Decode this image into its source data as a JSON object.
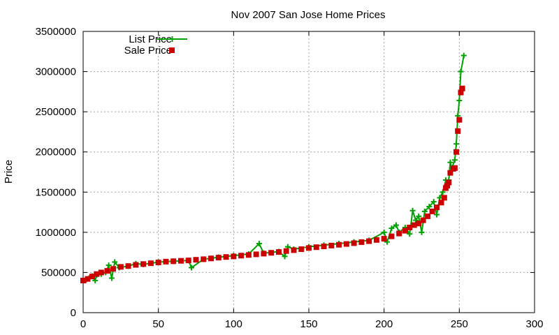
{
  "chart_data": {
    "type": "line",
    "title": "Nov 2007 San Jose Home Prices",
    "xlabel": "",
    "ylabel": "Price",
    "xlim": [
      0,
      300
    ],
    "ylim": [
      0,
      3500000
    ],
    "x_ticks": [
      "0",
      "50",
      "100",
      "150",
      "200",
      "250",
      "300"
    ],
    "y_ticks": [
      "0",
      "500000",
      "1000000",
      "1500000",
      "2000000",
      "2500000",
      "3000000",
      "3500000"
    ],
    "grid": true,
    "legend_position": "top-left",
    "colors": {
      "list": "#00a000",
      "sale": "#cc0000"
    },
    "series": [
      {
        "name": "List Price",
        "style": "lines+points",
        "marker": "plus",
        "points": [
          [
            0,
            399000
          ],
          [
            2,
            405000
          ],
          [
            4,
            430000
          ],
          [
            6,
            455000
          ],
          [
            8,
            400000
          ],
          [
            9,
            470000
          ],
          [
            12,
            480000
          ],
          [
            15,
            500000
          ],
          [
            17,
            590000
          ],
          [
            19,
            430000
          ],
          [
            21,
            630000
          ],
          [
            24,
            560000
          ],
          [
            30,
            580000
          ],
          [
            35,
            610000
          ],
          [
            40,
            600000
          ],
          [
            50,
            630000
          ],
          [
            60,
            640000
          ],
          [
            70,
            650000
          ],
          [
            72,
            560000
          ],
          [
            80,
            665000
          ],
          [
            90,
            690000
          ],
          [
            100,
            710000
          ],
          [
            110,
            730000
          ],
          [
            117,
            860000
          ],
          [
            120,
            740000
          ],
          [
            130,
            760000
          ],
          [
            134,
            700000
          ],
          [
            136,
            820000
          ],
          [
            140,
            790000
          ],
          [
            150,
            820000
          ],
          [
            160,
            840000
          ],
          [
            170,
            860000
          ],
          [
            180,
            880000
          ],
          [
            190,
            900000
          ],
          [
            200,
            1000000
          ],
          [
            202,
            880000
          ],
          [
            205,
            1050000
          ],
          [
            208,
            1090000
          ],
          [
            210,
            1000000
          ],
          [
            214,
            1060000
          ],
          [
            217,
            980000
          ],
          [
            219,
            1270000
          ],
          [
            221,
            1150000
          ],
          [
            223,
            1200000
          ],
          [
            225,
            1000000
          ],
          [
            227,
            1260000
          ],
          [
            230,
            1320000
          ],
          [
            233,
            1380000
          ],
          [
            235,
            1220000
          ],
          [
            237,
            1430000
          ],
          [
            239,
            1500000
          ],
          [
            241,
            1650000
          ],
          [
            243,
            1650000
          ],
          [
            244,
            1870000
          ],
          [
            245,
            1800000
          ],
          [
            247,
            1900000
          ],
          [
            248,
            2100000
          ],
          [
            249,
            2450000
          ],
          [
            250,
            2640000
          ],
          [
            251,
            3000000
          ],
          [
            253,
            3200000
          ]
        ]
      },
      {
        "name": "Sale Price",
        "style": "points",
        "marker": "square",
        "points": [
          [
            0,
            400000
          ],
          [
            3,
            420000
          ],
          [
            6,
            450000
          ],
          [
            9,
            480000
          ],
          [
            12,
            500000
          ],
          [
            16,
            520000
          ],
          [
            20,
            545000
          ],
          [
            25,
            570000
          ],
          [
            30,
            580000
          ],
          [
            35,
            595000
          ],
          [
            40,
            605000
          ],
          [
            45,
            615000
          ],
          [
            50,
            625000
          ],
          [
            55,
            635000
          ],
          [
            60,
            640000
          ],
          [
            65,
            645000
          ],
          [
            70,
            650000
          ],
          [
            75,
            658000
          ],
          [
            80,
            665000
          ],
          [
            85,
            675000
          ],
          [
            90,
            685000
          ],
          [
            95,
            693000
          ],
          [
            100,
            700000
          ],
          [
            105,
            710000
          ],
          [
            110,
            718000
          ],
          [
            115,
            726000
          ],
          [
            120,
            735000
          ],
          [
            125,
            745000
          ],
          [
            130,
            755000
          ],
          [
            135,
            767000
          ],
          [
            140,
            778000
          ],
          [
            145,
            790000
          ],
          [
            150,
            805000
          ],
          [
            155,
            815000
          ],
          [
            160,
            825000
          ],
          [
            165,
            835000
          ],
          [
            170,
            845000
          ],
          [
            175,
            855000
          ],
          [
            180,
            865000
          ],
          [
            185,
            878000
          ],
          [
            190,
            890000
          ],
          [
            195,
            905000
          ],
          [
            200,
            920000
          ],
          [
            205,
            950000
          ],
          [
            210,
            985000
          ],
          [
            214,
            1020000
          ],
          [
            217,
            1060000
          ],
          [
            220,
            1090000
          ],
          [
            223,
            1110000
          ],
          [
            226,
            1150000
          ],
          [
            229,
            1200000
          ],
          [
            232,
            1260000
          ],
          [
            235,
            1310000
          ],
          [
            238,
            1370000
          ],
          [
            240,
            1430000
          ],
          [
            241,
            1550000
          ],
          [
            242,
            1580000
          ],
          [
            243,
            1620000
          ],
          [
            244,
            1740000
          ],
          [
            246,
            1790000
          ],
          [
            247,
            1800000
          ],
          [
            248,
            2000000
          ],
          [
            249,
            2260000
          ],
          [
            250,
            2400000
          ],
          [
            251,
            2740000
          ],
          [
            252,
            2790000
          ]
        ]
      }
    ]
  }
}
